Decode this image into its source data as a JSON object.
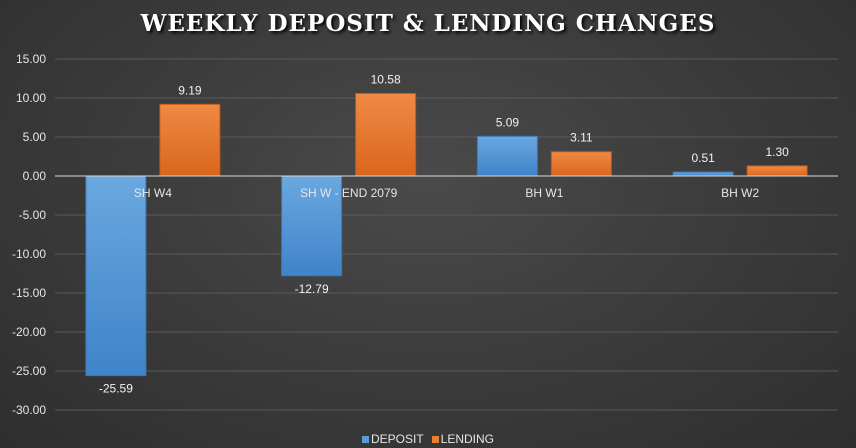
{
  "chart_data": {
    "type": "bar",
    "title": "WEEKLY DEPOSIT & LENDING CHANGES",
    "categories": [
      "SH W4",
      "SH W - END 2079",
      "BH W1",
      "BH W2"
    ],
    "series": [
      {
        "name": "DEPOSIT",
        "values": [
          -25.59,
          -12.79,
          5.09,
          0.51
        ],
        "labels": [
          "-25.59",
          "-12.79",
          "5.09",
          "0.51"
        ],
        "color": "#5b9bd5"
      },
      {
        "name": "LENDING",
        "values": [
          9.19,
          10.58,
          3.11,
          1.3
        ],
        "labels": [
          "9.19",
          "10.58",
          "3.11",
          "1.30"
        ],
        "color": "#ed7d31"
      }
    ],
    "yticks": [
      "15.00",
      "10.00",
      "5.00",
      "0.00",
      "-5.00",
      "-10.00",
      "-15.00",
      "-20.00",
      "-25.00",
      "-30.00"
    ],
    "ylim": [
      -30,
      15
    ],
    "grid": true,
    "legend_position": "bottom",
    "data_labels": true
  }
}
